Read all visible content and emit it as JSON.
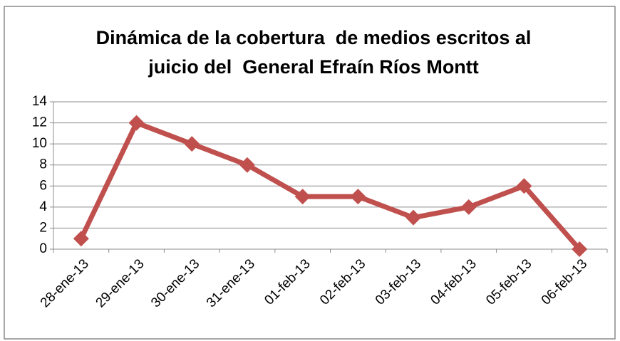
{
  "chart_data": {
    "type": "line",
    "title": [
      "Dinámica de la cobertura  de medios escritos al",
      "juicio del  General Efraín Ríos Montt"
    ],
    "categories": [
      "28-ene-13",
      "29-ene-13",
      "30-ene-13",
      "31-ene-13",
      "01-feb-13",
      "02-feb-13",
      "03-feb-13",
      "04-feb-13",
      "05-feb-13",
      "06-feb-13"
    ],
    "values": [
      1,
      12,
      10,
      8,
      5,
      5,
      3,
      4,
      6,
      0
    ],
    "color": "#c0504d",
    "ylim": [
      0,
      14
    ],
    "yticks": [
      0,
      2,
      4,
      6,
      8,
      10,
      12,
      14
    ],
    "grid": true
  }
}
